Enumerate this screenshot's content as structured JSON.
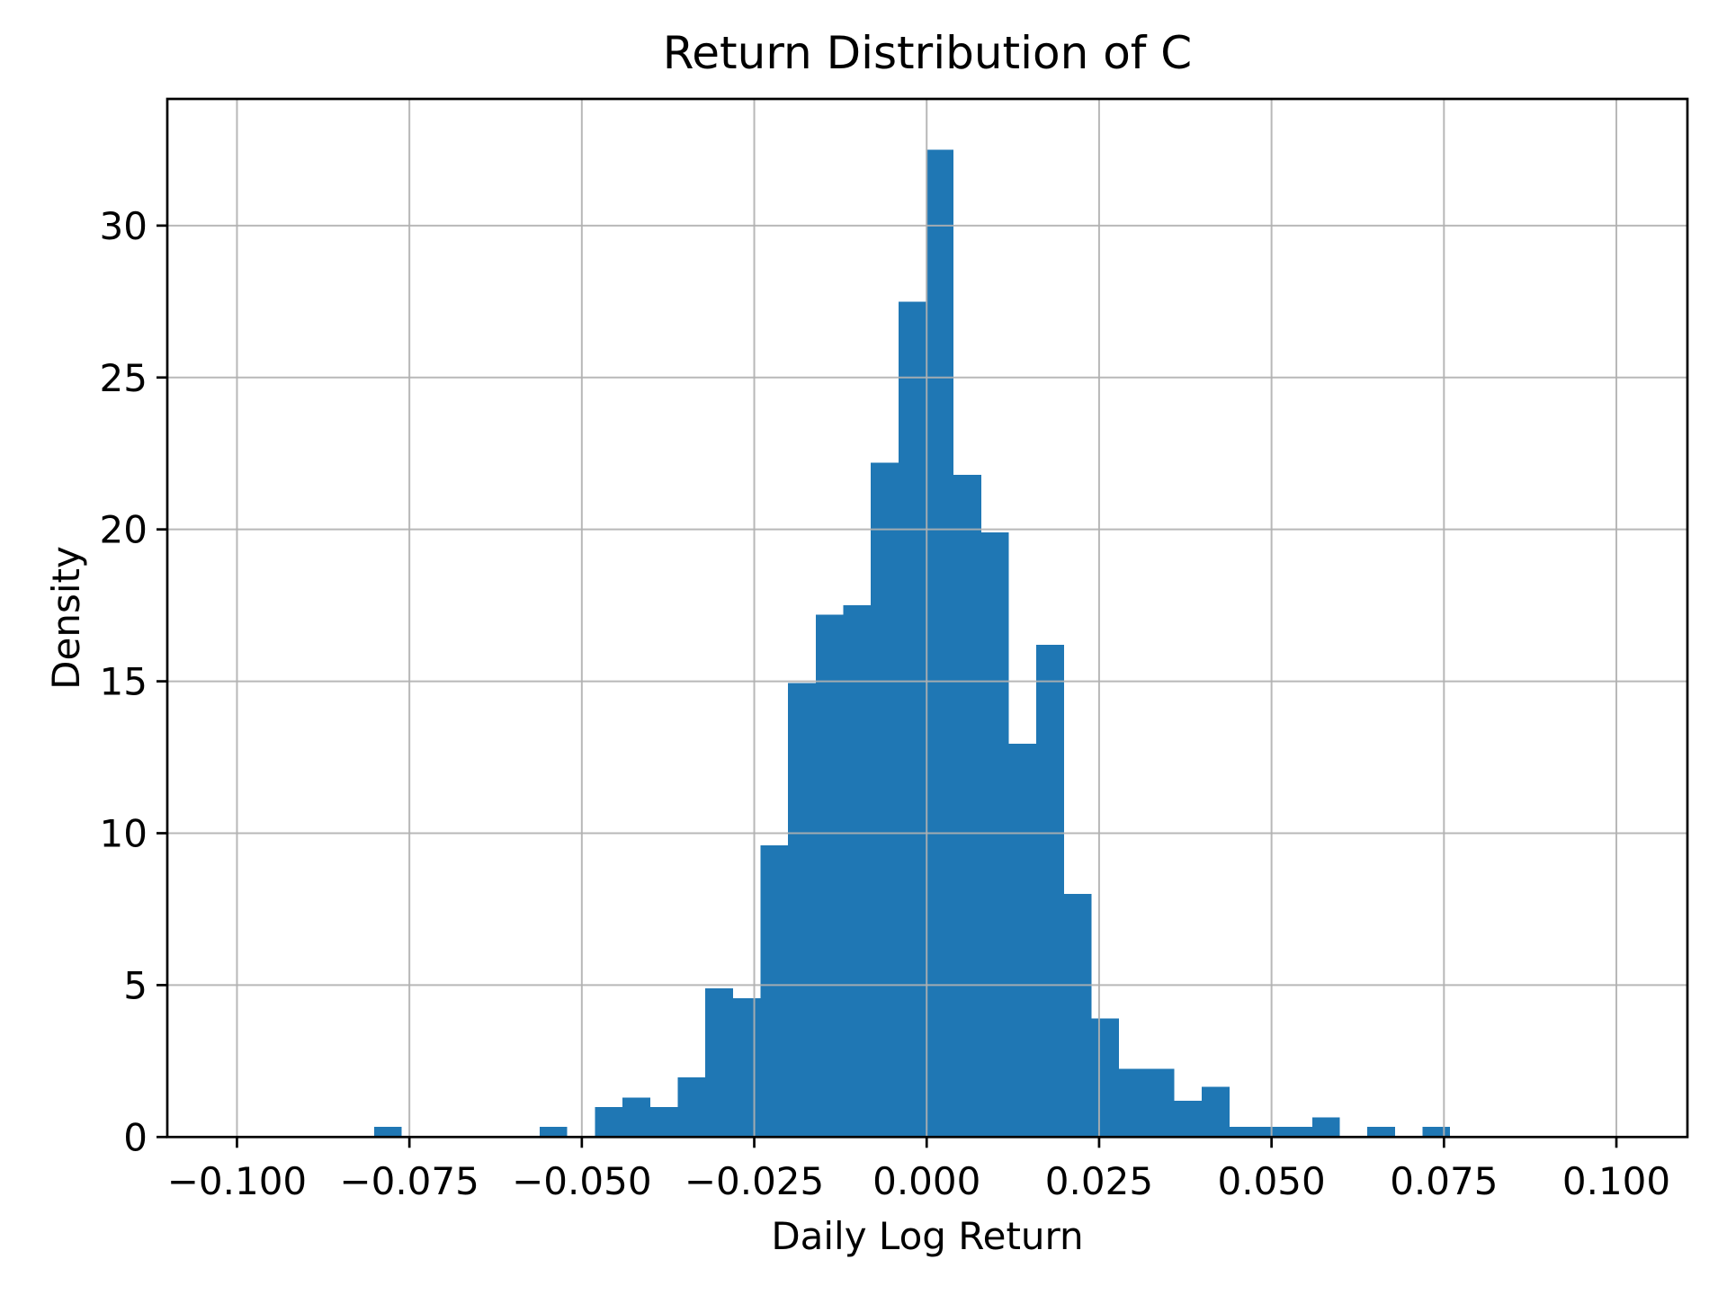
{
  "chart_data": {
    "type": "bar",
    "subtype": "histogram",
    "title": "Return Distribution of C",
    "xlabel": "Daily Log Return",
    "ylabel": "Density",
    "bar_color": "#1f77b4",
    "grid_color": "#b0b0b0",
    "grid_on": true,
    "xlim": [
      -0.1101,
      0.1103
    ],
    "ylim": [
      0,
      34.17
    ],
    "bin_start": -0.0801,
    "bin_width": 0.004,
    "bin_heights": [
      0.33,
      0,
      0,
      0,
      0,
      0,
      0.33,
      0,
      0.98,
      1.3,
      0.98,
      1.96,
      4.89,
      4.57,
      9.6,
      14.95,
      17.2,
      17.5,
      22.2,
      27.5,
      32.5,
      21.8,
      19.9,
      12.95,
      16.2,
      8.0,
      3.9,
      2.24,
      2.24,
      1.2,
      1.65,
      0.33,
      0.33,
      0.33,
      0.65,
      0,
      0.33,
      0,
      0.33
    ],
    "xticks": {
      "values": [
        -0.1,
        -0.075,
        -0.05,
        -0.025,
        0.0,
        0.025,
        0.05,
        0.075,
        0.1
      ],
      "labels": [
        "−0.100",
        "−0.075",
        "−0.050",
        "−0.025",
        "0.000",
        "0.025",
        "0.050",
        "0.075",
        "0.100"
      ]
    },
    "yticks": {
      "values": [
        0,
        5,
        10,
        15,
        20,
        25,
        30
      ],
      "labels": [
        "0",
        "5",
        "10",
        "15",
        "20",
        "25",
        "30"
      ]
    }
  }
}
